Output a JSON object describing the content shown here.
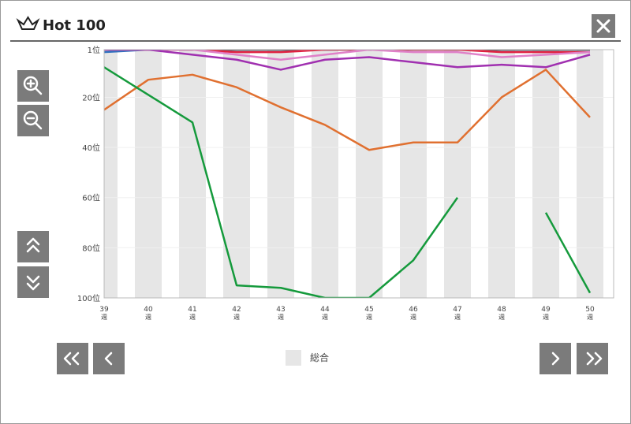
{
  "header": {
    "title": "Hot 100"
  },
  "chart_data": {
    "type": "line",
    "categories": [
      "39",
      "40",
      "41",
      "42",
      "43",
      "44",
      "45",
      "46",
      "47",
      "48",
      "49",
      "50"
    ],
    "x_unit": "週",
    "ylim": [
      1,
      100
    ],
    "y_inverted": true,
    "yticks": [
      {
        "value": 1,
        "label": "1位"
      },
      {
        "value": 20,
        "label": "20位"
      },
      {
        "value": 40,
        "label": "40位"
      },
      {
        "value": 60,
        "label": "60位"
      },
      {
        "value": 80,
        "label": "80位"
      },
      {
        "value": 100,
        "label": "100位"
      }
    ],
    "grid": true,
    "band_color": "#e6e6e6",
    "legend_label": "総合",
    "series": [
      {
        "color": "#159a3c",
        "values": [
          8,
          19,
          30,
          95,
          96,
          100,
          100,
          85,
          60,
          null,
          66,
          98
        ]
      },
      {
        "color": "#e07030",
        "values": [
          25,
          13,
          11,
          16,
          24,
          31,
          41,
          38,
          38,
          20,
          9,
          28
        ]
      },
      {
        "color": "#a030b0",
        "values": [
          1,
          1,
          3,
          5,
          9,
          5,
          4,
          6,
          8,
          7,
          8,
          3
        ]
      },
      {
        "color": "#e080c8",
        "values": [
          1,
          1,
          1,
          3,
          5,
          3,
          1,
          2,
          2,
          4,
          3,
          2
        ]
      },
      {
        "color": "#e02040",
        "values": [
          1,
          1,
          1,
          2,
          2,
          1,
          1,
          1,
          1,
          2,
          2,
          2
        ]
      },
      {
        "color": "#333333",
        "values": [
          1,
          1,
          1,
          1,
          1,
          1,
          1,
          1,
          1,
          1,
          1,
          1
        ]
      },
      {
        "color": "#3070c0",
        "values": [
          2,
          1,
          1,
          1,
          1,
          1,
          1,
          1,
          1,
          1,
          1,
          1
        ]
      }
    ]
  }
}
